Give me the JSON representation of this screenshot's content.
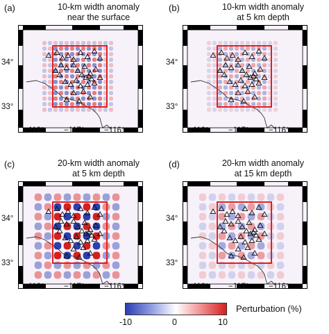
{
  "panels": [
    {
      "label": "(a)",
      "title1": "10-km width anomaly",
      "title2": "near the surface",
      "cell": 8,
      "amp": 0.55
    },
    {
      "label": "(b)",
      "title1": "10-km width anomaly",
      "title2": "at 5 km depth",
      "cell": 8,
      "amp": 0.35
    },
    {
      "label": "(c)",
      "title1": "20-km width anomaly",
      "title2": "at 5 km depth",
      "cell": 14,
      "amp": 1.0
    },
    {
      "label": "(d)",
      "title1": "20-km width anomaly",
      "title2": "at 15 km depth",
      "cell": 14,
      "amp": 0.4
    }
  ],
  "axes": {
    "x_ticks": [
      "−118°",
      "−117°",
      "−116°"
    ],
    "y_ticks": [
      "34°",
      "33°"
    ]
  },
  "legend": {
    "title": "Perturbation (%)",
    "ticks": [
      "-10",
      "0",
      "10"
    ],
    "range": [
      -10,
      10
    ],
    "colors": {
      "negative": "#2b3fb0",
      "zero": "#ffffff",
      "positive": "#d61f1f"
    }
  },
  "colors": {
    "box": "#e02020",
    "coast": "#333333",
    "background": "#f7f2fa"
  }
}
